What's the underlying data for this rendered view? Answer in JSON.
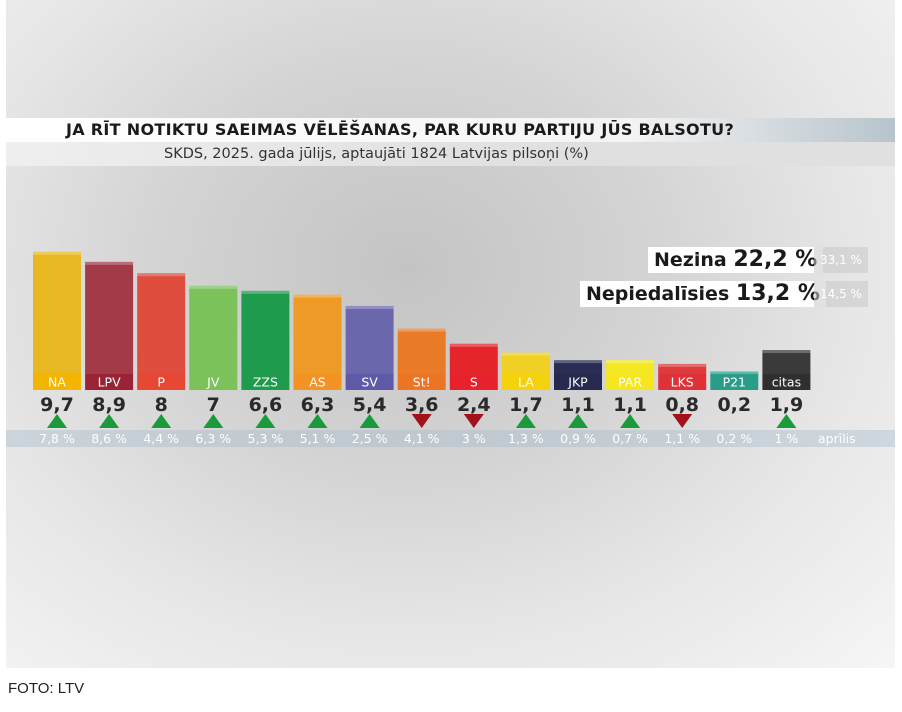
{
  "header": {
    "title": "JA RĪT NOTIKTU SAEIMAS VĒLĒŠANAS, PAR KURU PARTIJU JŪS BALSOTU?",
    "subtitle": "SKDS, 2025. gada jūlijs, aptaujāti 1824 Latvijas pilsoņi (%)"
  },
  "side_stats": [
    {
      "label": "Nezina",
      "value": "22,2 %",
      "previous": "33,1 %"
    },
    {
      "label": "Nepiedalīsies",
      "value": "13,2 %",
      "previous": "14,5 %"
    }
  ],
  "previous_label": "aprīlis",
  "caption": "FOTO: LTV",
  "chart_data": {
    "type": "bar",
    "title": "JA RĪT NOTIKTU SAEIMAS VĒLĒŠANAS, PAR KURU PARTIJU JŪS BALSOTU?",
    "subtitle": "SKDS, 2025. gada jūlijs, aptaujāti 1824 Latvijas pilsoņi (%)",
    "categories": [
      "NA",
      "LPV",
      "P",
      "JV",
      "ZZS",
      "AS",
      "SV",
      "St!",
      "S",
      "LA",
      "JKP",
      "PAR",
      "LKS",
      "P21",
      "citas"
    ],
    "values": [
      9.7,
      8.9,
      8,
      7,
      6.6,
      6.3,
      5.4,
      3.6,
      2.4,
      1.7,
      1.1,
      1.1,
      0.8,
      0.2,
      1.9
    ],
    "value_labels": [
      "9,7",
      "8,9",
      "8",
      "7",
      "6,6",
      "6,3",
      "5,4",
      "3,6",
      "2,4",
      "1,7",
      "1,1",
      "1,1",
      "0,8",
      "0,2",
      "1,9"
    ],
    "previous_labels": [
      "7,8 %",
      "8,6 %",
      "4,4 %",
      "6,3 %",
      "5,3 %",
      "5,1 %",
      "2,5 %",
      "4,1 %",
      "3 %",
      "1,3 %",
      "0,9 %",
      "0,7 %",
      "1,1 %",
      "0,2 %",
      "1 %"
    ],
    "trend": [
      "up",
      "up",
      "up",
      "up",
      "up",
      "up",
      "up",
      "down",
      "down",
      "up",
      "up",
      "up",
      "down",
      "none",
      "up"
    ],
    "colors": [
      "#e8b822",
      "#a33a48",
      "#de4d3e",
      "#7cc25a",
      "#1f9b4e",
      "#ee9a26",
      "#6a67ad",
      "#ea7b26",
      "#e4262b",
      "#f0d123",
      "#2a2e55",
      "#f3e824",
      "#dd3b3b",
      "#2aa18b",
      "#3a3a3a"
    ],
    "label_box_colors": [
      "#f3b500",
      "#9b2336",
      "#e64835",
      "#7cc25a",
      "#1f9b4e",
      "#f39324",
      "#5f5aa8",
      "#ec7425",
      "#e8222d",
      "#f5d20c",
      "#272a4f",
      "#f6e61f",
      "#e03139",
      "#2a9d8a",
      "#2f2f2f"
    ],
    "ylim": [
      0,
      10
    ],
    "trend_colors": {
      "up": "#1a9a3a",
      "down": "#a1121a"
    }
  }
}
